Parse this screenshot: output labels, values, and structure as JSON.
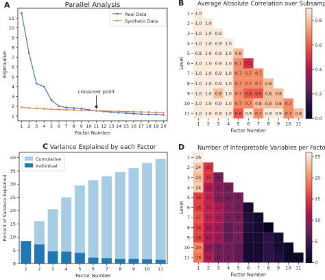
{
  "chart_data": [
    {
      "panel": "A",
      "type": "line",
      "title": "Parallel Analysis",
      "xlabel": "Factor Number",
      "ylabel": "Eigenvalue",
      "x": [
        1,
        2,
        3,
        4,
        5,
        6,
        7,
        8,
        9,
        10,
        11,
        12,
        13,
        14,
        15,
        16,
        17,
        18,
        19,
        20
      ],
      "xlim": [
        0.5,
        20.5
      ],
      "ylim": [
        0.5,
        12
      ],
      "yticks": [
        1,
        2,
        3,
        4,
        5,
        6,
        7,
        8,
        9,
        10,
        11
      ],
      "series": [
        {
          "name": "Real Data",
          "color": "#4c72b0",
          "marker": "dot",
          "values": [
            11.5,
            7.4,
            4.3,
            4.0,
            2.6,
            2.0,
            1.85,
            1.8,
            1.75,
            1.62,
            1.52,
            1.45,
            1.38,
            1.32,
            1.28,
            1.22,
            1.18,
            1.15,
            1.15,
            1.1
          ]
        },
        {
          "name": "Synthetic Data",
          "color": "#dd8452",
          "marker": "dot",
          "values": [
            1.88,
            1.8,
            1.76,
            1.72,
            1.68,
            1.65,
            1.62,
            1.6,
            1.57,
            1.55,
            1.53,
            1.5,
            1.48,
            1.46,
            1.44,
            1.42,
            1.4,
            1.38,
            1.36,
            1.34
          ]
        }
      ],
      "annotation": {
        "text": "crossover point",
        "x": 11,
        "y": 1.55
      },
      "legend": "top-right"
    },
    {
      "panel": "B",
      "type": "heatmap",
      "title": "Average Absolute Correlation over Subsamples",
      "xlabel": "Factor Number",
      "ylabel": "Level",
      "rows": [
        1,
        2,
        3,
        4,
        5,
        6,
        7,
        8,
        9,
        10,
        11
      ],
      "cols": [
        1,
        2,
        3,
        4,
        5,
        6,
        7,
        8,
        9,
        10,
        11
      ],
      "values": [
        [
          1.0
        ],
        [
          1.0,
          1.0
        ],
        [
          1.0,
          1.0,
          0.9
        ],
        [
          1.0,
          1.0,
          0.9,
          1.0
        ],
        [
          0.9,
          1.0,
          0.9,
          1.0,
          0.8
        ],
        [
          1.0,
          1.0,
          0.9,
          1.0,
          0.7,
          0.5
        ],
        [
          1.0,
          1.0,
          0.9,
          1.0,
          0.7,
          0.7,
          0.7
        ],
        [
          1.0,
          1.0,
          0.9,
          1.0,
          0.7,
          0.7,
          0.7,
          0.8
        ],
        [
          1.0,
          1.0,
          0.8,
          1.0,
          0.7,
          0.6,
          0.6,
          0.8,
          0.8
        ],
        [
          1.0,
          1.0,
          0.9,
          1.0,
          0.7,
          0.7,
          0.8,
          0.8,
          0.8,
          0.7
        ],
        [
          1.0,
          1.0,
          0.9,
          1.0,
          0.6,
          0.9,
          0.7,
          0.9,
          0.9,
          0.7,
          0.8
        ]
      ],
      "colorbar": {
        "min": 0.0,
        "max": 0.9,
        "ticks": [
          0.0,
          0.2,
          0.4,
          0.6,
          0.8
        ],
        "colormap": "rocket"
      }
    },
    {
      "panel": "C",
      "type": "bar",
      "title": "Variance Explained by each Factor",
      "xlabel": "Factor Number",
      "ylabel": "Percent of Variance Explained",
      "categories": [
        1,
        2,
        3,
        4,
        5,
        6,
        7,
        8,
        9,
        10,
        11
      ],
      "ylim": [
        0,
        42
      ],
      "yticks": [
        0,
        5,
        10,
        15,
        20,
        25,
        30,
        35,
        40
      ],
      "series": [
        {
          "name": "Cumulative",
          "color": "#a6cde3",
          "values": [
            8.5,
            16,
            20.5,
            25,
            29.5,
            31.5,
            33,
            34.5,
            36,
            38,
            39.5
          ]
        },
        {
          "name": "Individual",
          "color": "#1f78b4",
          "values": [
            8.5,
            7.2,
            4.6,
            4.5,
            4.0,
            2.2,
            2.0,
            1.8,
            1.8,
            1.6,
            1.4
          ]
        }
      ],
      "legend": "top-left"
    },
    {
      "panel": "D",
      "type": "heatmap",
      "title": "Number of Interpretable Variables per Factor",
      "xlabel": "Factor Number",
      "ylabel": "Level",
      "rows": [
        1,
        2,
        3,
        4,
        5,
        6,
        7,
        8,
        9,
        10,
        11
      ],
      "cols": [
        1,
        2,
        3,
        4,
        5,
        6,
        7,
        8,
        9,
        10,
        11
      ],
      "values": [
        [
          26
        ],
        [
          24,
          15
        ],
        [
          23,
          15,
          8
        ],
        [
          24,
          12,
          9,
          8
        ],
        [
          16,
          13,
          9,
          8,
          8
        ],
        [
          16,
          13,
          12,
          9,
          8,
          2
        ],
        [
          17,
          13,
          12,
          8,
          8,
          3,
          2
        ],
        [
          16,
          12,
          11,
          7,
          8,
          3,
          2,
          0
        ],
        [
          16,
          12,
          11,
          7,
          8,
          2,
          2,
          4,
          2
        ],
        [
          20,
          10,
          8,
          8,
          7,
          2,
          2,
          4,
          2,
          1
        ],
        [
          19,
          12,
          8,
          8,
          7,
          2,
          2,
          4,
          3,
          1,
          1
        ]
      ],
      "colorbar": {
        "min": 0,
        "max": 26,
        "ticks": [
          0,
          5,
          10,
          15,
          20,
          25
        ],
        "colormap": "rocket"
      }
    }
  ]
}
